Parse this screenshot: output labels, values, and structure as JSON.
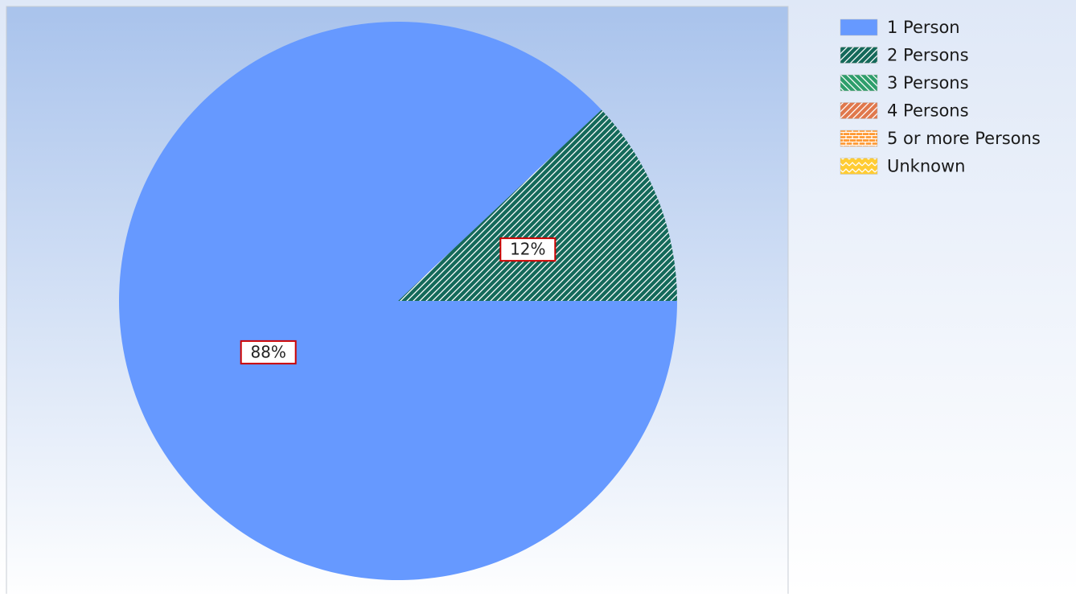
{
  "chart_data": {
    "type": "pie",
    "categories": [
      "1 Person",
      "2 Persons",
      "3 Persons",
      "4 Persons",
      "5 or more Persons",
      "Unknown"
    ],
    "values": [
      88,
      12,
      0,
      0,
      0,
      0
    ],
    "value_labels": [
      "88%",
      "12%",
      null,
      null,
      null,
      null
    ],
    "colors": [
      "#6699ff",
      "#14695a",
      "#2e9e6b",
      "#e0784c",
      "#ff9933",
      "#ffcc33"
    ],
    "patterns": [
      "solid",
      "diagonal",
      "diagonal-back",
      "diagonal",
      "brick",
      "zigzag"
    ],
    "legend": "right"
  }
}
